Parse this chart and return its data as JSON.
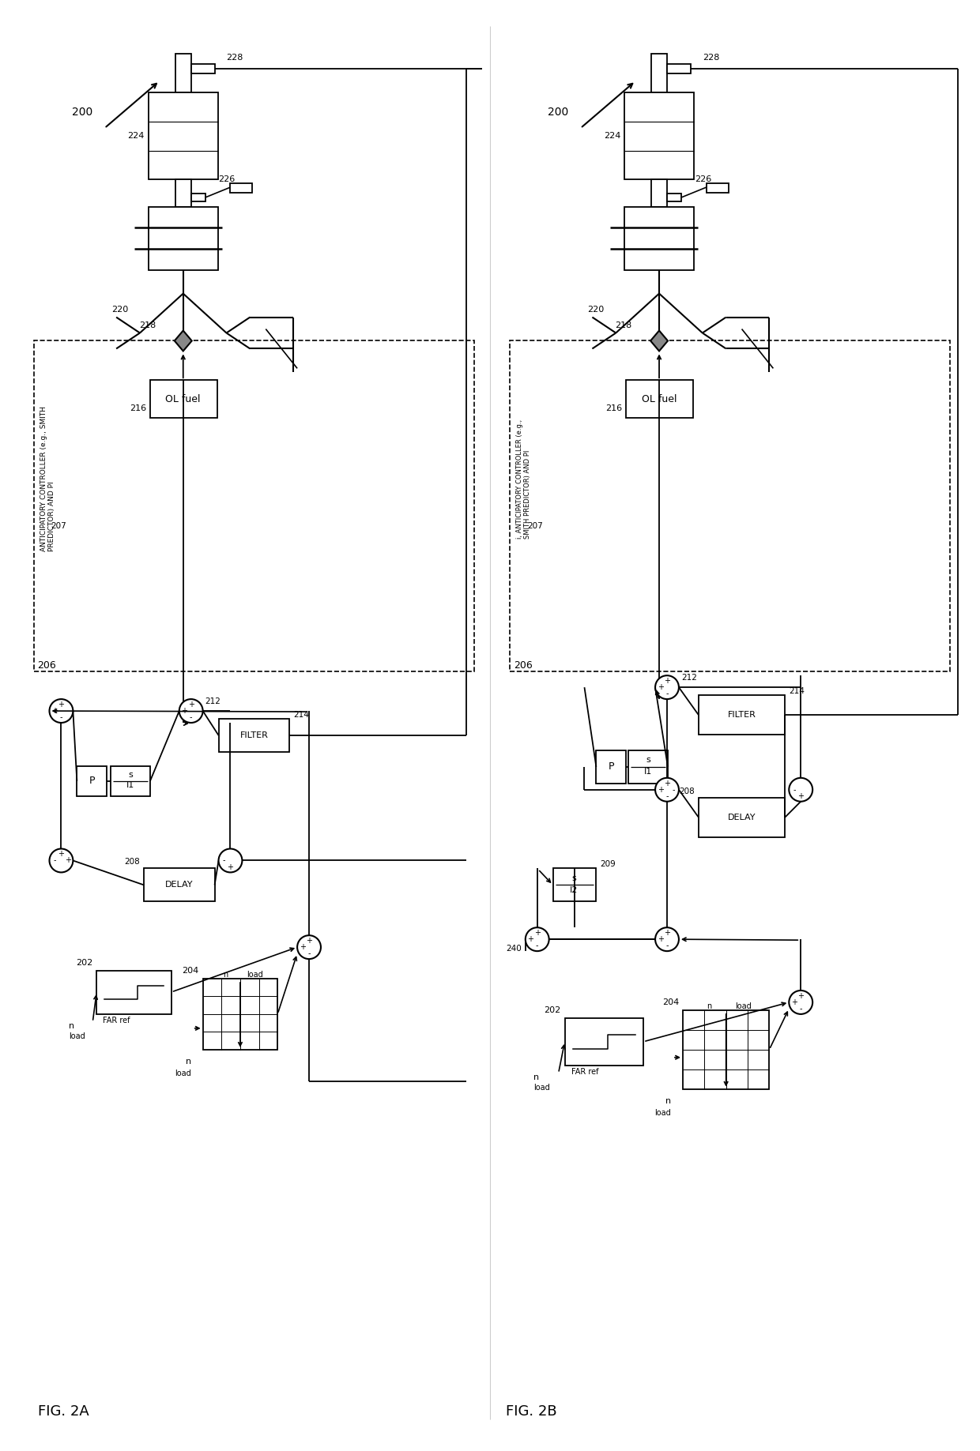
{
  "fig_width": 12.4,
  "fig_height": 18.37,
  "bg_color": "#ffffff",
  "label_anticipatory_a": "ANTICIPATORY CONTROLLER (e.g., SMITH\nPREDICTOR) AND PI",
  "label_anticipatory_b": "i, ANTICIPATORY CONTROLLER (e.g.,\nSMITH PREDICTOR) AND PI",
  "label_ol_fuel": "OL fuel",
  "label_filter": "FILTER",
  "label_delay": "DELAY",
  "label_far_ref": "FAR ref",
  "ref_200": "200",
  "ref_202": "202",
  "ref_204": "204",
  "ref_206": "206",
  "ref_207": "207",
  "ref_208": "208",
  "ref_209": "209",
  "ref_212": "212",
  "ref_214": "214",
  "ref_216": "216",
  "ref_218": "218",
  "ref_220": "220",
  "ref_224": "224",
  "ref_226": "226",
  "ref_228": "228",
  "ref_240": "240",
  "fig2a_label": "FIG. 2A",
  "fig2b_label": "FIG. 2B"
}
